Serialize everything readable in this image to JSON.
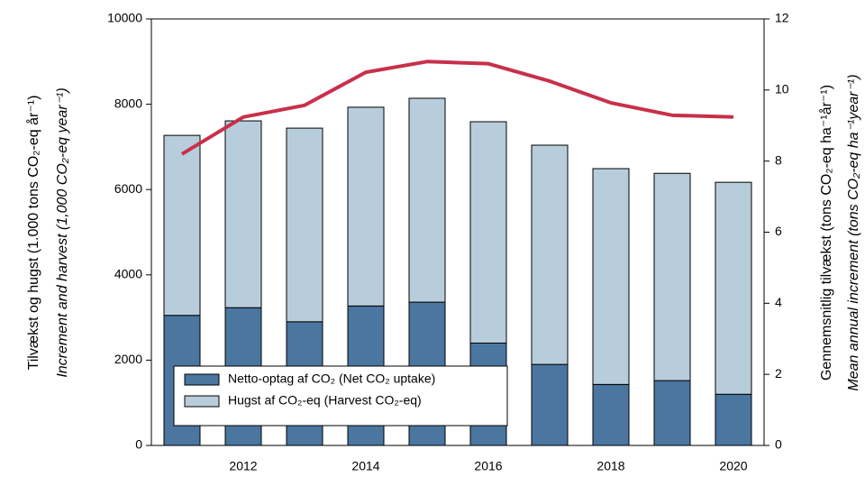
{
  "chart_data": {
    "type": "bar",
    "categories": [
      null,
      "2012",
      null,
      "2014",
      null,
      "2016",
      null,
      "2018",
      null,
      "2020"
    ],
    "series": [
      {
        "name": "Netto-optag af CO₂ (Net CO₂ uptake)",
        "color": "#4a76a0",
        "values": [
          3050,
          3230,
          2900,
          3270,
          3360,
          2400,
          1900,
          1430,
          1520,
          1200
        ]
      },
      {
        "name": "Hugst af CO₂-eq (Harvest CO₂-eq)",
        "color": "#b8cddb",
        "values": [
          4220,
          4380,
          4540,
          4660,
          4780,
          5190,
          5140,
          5060,
          4860,
          4970
        ]
      },
      {
        "name": null,
        "type": "line",
        "axis": "y2",
        "color": "#c8304a",
        "values": [
          8.2,
          9.24,
          9.57,
          10.5,
          10.8,
          10.74,
          10.25,
          9.64,
          9.29,
          9.24
        ]
      }
    ],
    "stacked": true,
    "ylabel": [
      "Tilvækst og hugst (1.000 tons CO₂-eq år⁻¹)",
      "Increment and harvest (1,000 CO₂-eq year⁻¹)"
    ],
    "y2label": [
      "Gennemsnitlig tilvækst (tons CO₂-eq ha⁻¹år⁻¹)",
      "Mean annual increment (tons CO₂-eq ha⁻¹year⁻¹)"
    ],
    "ylim": [
      0,
      10000
    ],
    "yticks": [
      0,
      2000,
      4000,
      6000,
      8000,
      10000
    ],
    "y2lim": [
      0,
      12
    ],
    "y2ticks": [
      0,
      2,
      4,
      6,
      8,
      10,
      12
    ],
    "legend": "lower left"
  }
}
